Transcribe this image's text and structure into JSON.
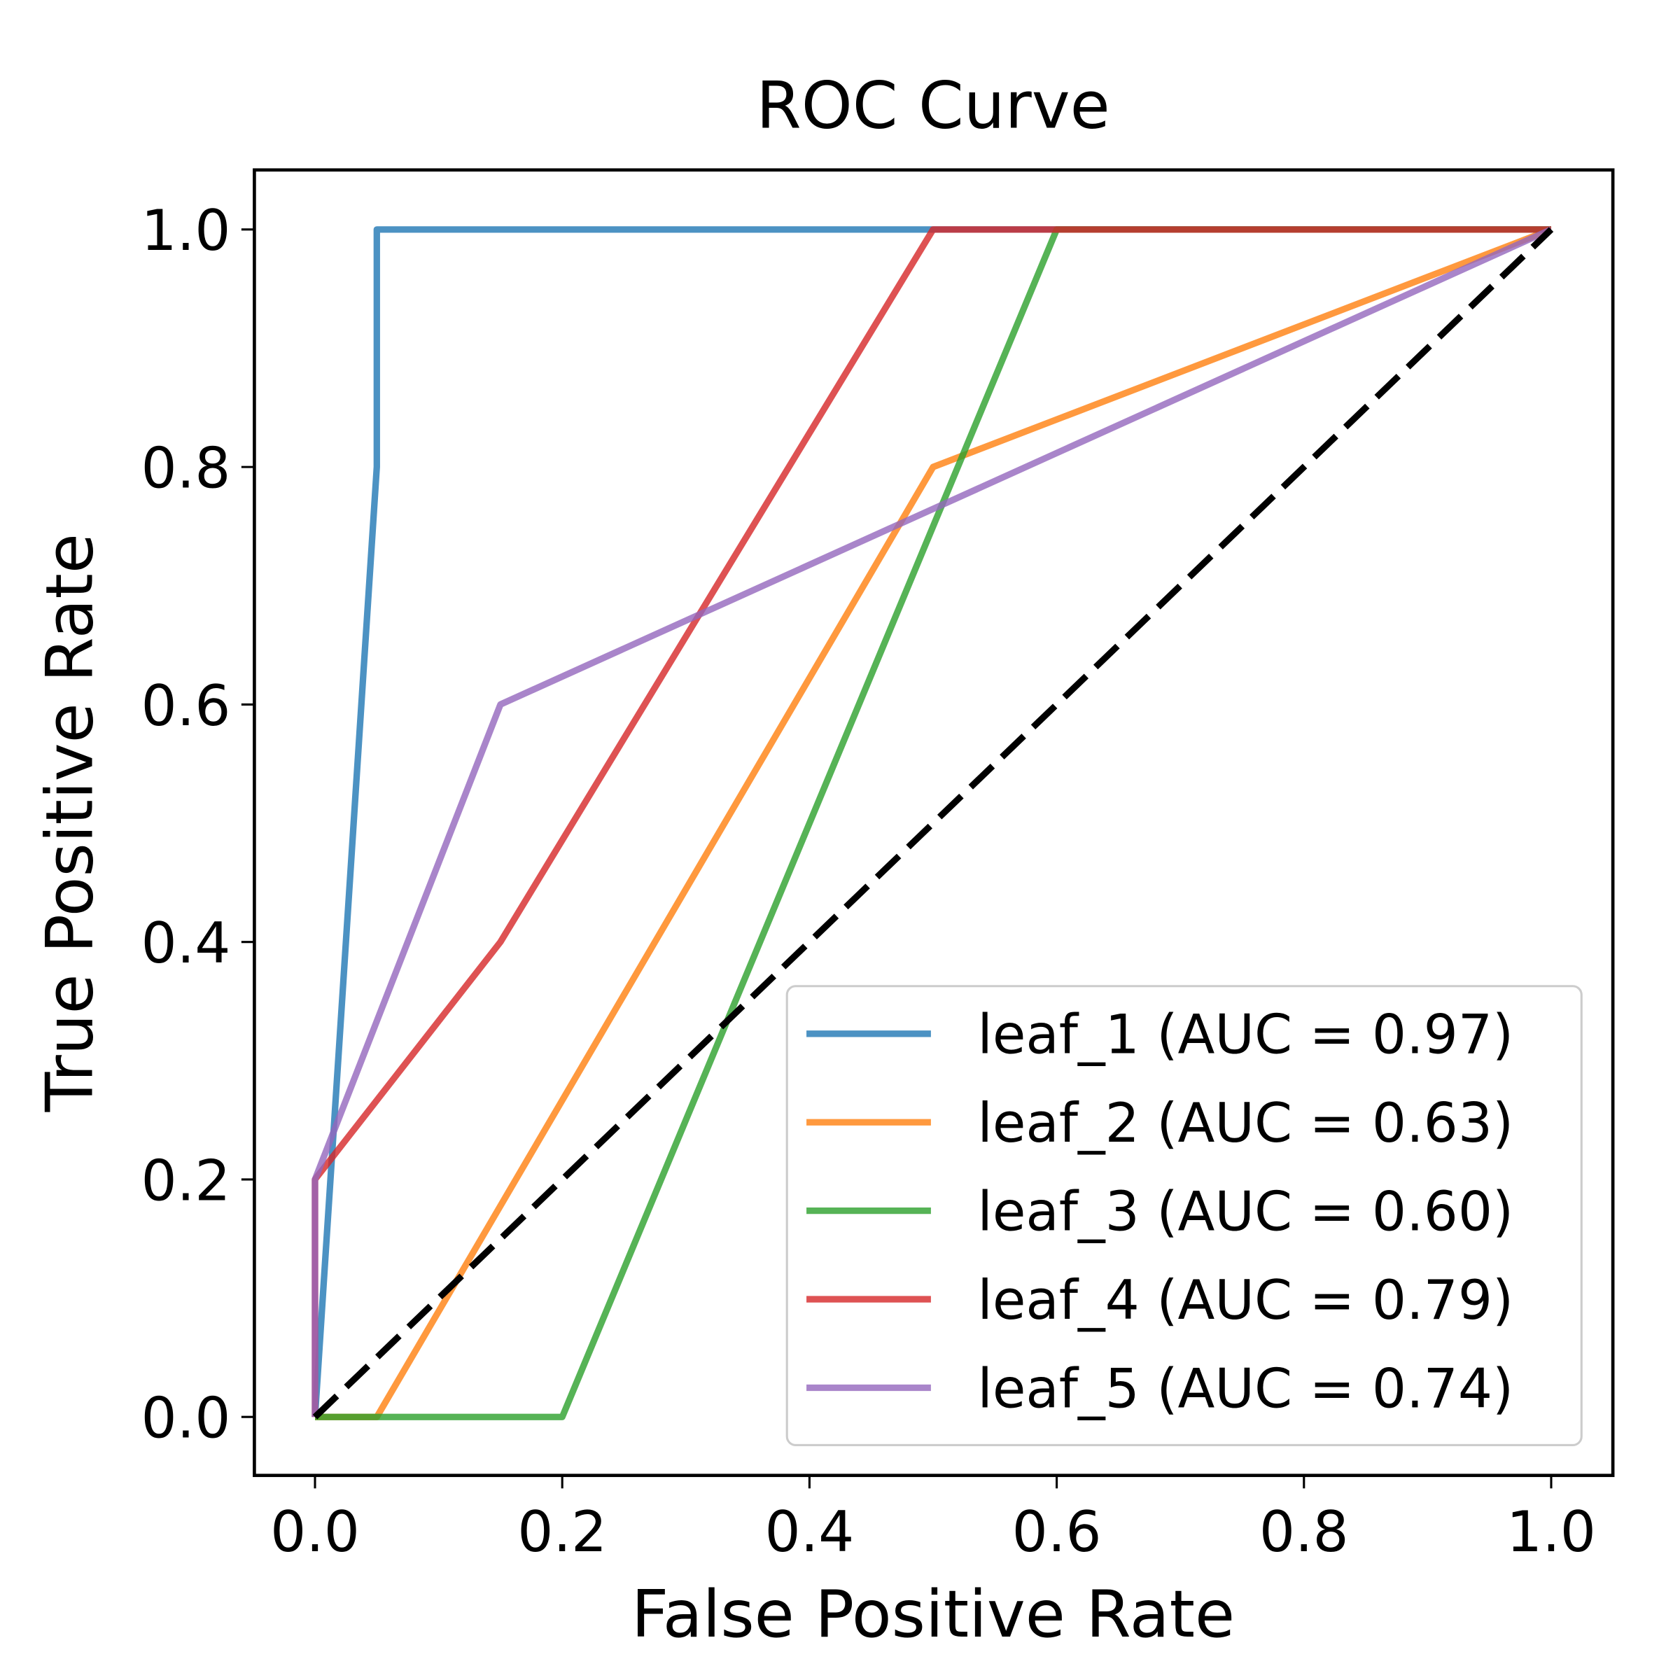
{
  "chart_data": {
    "type": "line",
    "title": "ROC Curve",
    "xlabel": "False Positive Rate",
    "ylabel": "True Positive Rate",
    "xlim": [
      -0.05,
      1.05
    ],
    "ylim": [
      -0.05,
      1.05
    ],
    "xticks": [
      "0.0",
      "0.2",
      "0.4",
      "0.6",
      "0.8",
      "1.0"
    ],
    "yticks": [
      "0.0",
      "0.2",
      "0.4",
      "0.6",
      "0.8",
      "1.0"
    ],
    "grid": false,
    "legend_placement": "lower-right",
    "series": [
      {
        "name": "leaf_1 (AUC = 0.97)",
        "color": "#1f77b4",
        "x": [
          0,
          0.05,
          0.05,
          1
        ],
        "y": [
          0,
          0.8,
          1,
          1
        ]
      },
      {
        "name": "leaf_2 (AUC = 0.63)",
        "color": "#ff7f0e",
        "x": [
          0,
          0.05,
          0.5,
          1
        ],
        "y": [
          0,
          0,
          0.8,
          1
        ]
      },
      {
        "name": "leaf_3 (AUC = 0.60)",
        "color": "#2ca02c",
        "x": [
          0,
          0.2,
          0.6,
          1
        ],
        "y": [
          0,
          0,
          1,
          1
        ]
      },
      {
        "name": "leaf_4 (AUC = 0.79)",
        "color": "#d62728",
        "x": [
          0,
          0,
          0.15,
          0.5,
          1
        ],
        "y": [
          0,
          0.2,
          0.4,
          1,
          1
        ]
      },
      {
        "name": "leaf_5 (AUC = 0.74)",
        "color": "#9467bd",
        "x": [
          0,
          0,
          0.15,
          1
        ],
        "y": [
          0,
          0.2,
          0.6,
          1
        ]
      }
    ],
    "reference_line": {
      "x": [
        0,
        1
      ],
      "y": [
        0,
        1
      ],
      "color": "#000000",
      "style": "dashed"
    }
  }
}
